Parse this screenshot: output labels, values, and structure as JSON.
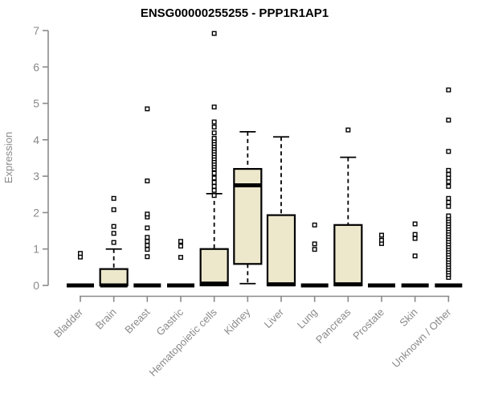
{
  "chart_data": {
    "type": "boxplot",
    "title": "ENSG00000255255 - PPP1R1AP1",
    "ylabel": "Expression",
    "ylim": [
      0,
      7
    ],
    "yticks": [
      0,
      1,
      2,
      3,
      4,
      5,
      6,
      7
    ],
    "grid": false,
    "legend": "none",
    "box_fill": "#ede8cc",
    "box_stroke": "#000000",
    "axis_color": "#8a8a8a",
    "title_color": "#000000",
    "categories": [
      "Bladder",
      "Brain",
      "Breast",
      "Gastric",
      "Hematopoietic cells",
      "Kidney",
      "Liver",
      "Lung",
      "Pancreas",
      "Prostate",
      "Skin",
      "Unknown / Other"
    ],
    "series": [
      {
        "name": "Bladder",
        "q1": 0,
        "median": 0,
        "q3": 0,
        "whisker_low": 0,
        "whisker_high": 0,
        "outliers": [
          0.78,
          0.88
        ]
      },
      {
        "name": "Brain",
        "q1": 0,
        "median": 0,
        "q3": 0.45,
        "whisker_low": 0,
        "whisker_high": 1.0,
        "outliers": [
          1.18,
          1.43,
          1.62,
          2.08,
          2.39
        ]
      },
      {
        "name": "Breast",
        "q1": 0,
        "median": 0,
        "q3": 0,
        "whisker_low": 0,
        "whisker_high": 0,
        "outliers": [
          0.79,
          0.99,
          1.1,
          1.21,
          1.32,
          1.58,
          1.88,
          1.96,
          2.87,
          4.85
        ]
      },
      {
        "name": "Gastric",
        "q1": 0,
        "median": 0,
        "q3": 0,
        "whisker_low": 0,
        "whisker_high": 0,
        "outliers": [
          0.77,
          1.08,
          1.21
        ]
      },
      {
        "name": "Hematopoietic cells",
        "q1": 0,
        "median": 0.05,
        "q3": 1.0,
        "whisker_low": 0,
        "whisker_high": 2.52,
        "outliers": [
          2.47,
          2.61,
          2.72,
          2.83,
          2.95,
          3.08,
          3.2,
          3.27,
          3.34,
          3.41,
          3.48,
          3.55,
          3.62,
          3.69,
          3.76,
          3.83,
          3.9,
          3.97,
          4.04,
          4.19,
          4.35,
          4.49,
          4.9,
          6.92
        ]
      },
      {
        "name": "Kidney",
        "q1": 0.59,
        "median": 2.75,
        "q3": 3.2,
        "whisker_low": 0.05,
        "whisker_high": 4.22,
        "outliers": []
      },
      {
        "name": "Liver",
        "q1": 0,
        "median": 0.03,
        "q3": 1.93,
        "whisker_low": 0,
        "whisker_high": 4.08,
        "outliers": []
      },
      {
        "name": "Lung",
        "q1": 0,
        "median": 0,
        "q3": 0,
        "whisker_low": 0,
        "whisker_high": 0,
        "outliers": [
          0.99,
          1.14,
          1.66
        ]
      },
      {
        "name": "Pancreas",
        "q1": 0,
        "median": 0.03,
        "q3": 1.66,
        "whisker_low": 0,
        "whisker_high": 3.52,
        "outliers": [
          4.27
        ]
      },
      {
        "name": "Prostate",
        "q1": 0,
        "median": 0,
        "q3": 0,
        "whisker_low": 0,
        "whisker_high": 0,
        "outliers": [
          1.15,
          1.24,
          1.38
        ]
      },
      {
        "name": "Skin",
        "q1": 0,
        "median": 0,
        "q3": 0,
        "whisker_low": 0,
        "whisker_high": 0,
        "outliers": [
          0.81,
          1.29,
          1.4,
          1.69
        ]
      },
      {
        "name": "Unknown / Other",
        "q1": 0,
        "median": 0,
        "q3": 0,
        "whisker_low": 0,
        "whisker_high": 0,
        "outliers": [
          0.22,
          0.3,
          0.37,
          0.44,
          0.51,
          0.58,
          0.65,
          0.72,
          0.79,
          0.86,
          0.93,
          1.0,
          1.07,
          1.14,
          1.21,
          1.28,
          1.35,
          1.42,
          1.49,
          1.56,
          1.63,
          1.7,
          1.77,
          1.84,
          1.91,
          2.17,
          2.28,
          2.39,
          2.72,
          2.85,
          2.95,
          3.05,
          3.16,
          3.68,
          4.54,
          5.37
        ]
      }
    ]
  }
}
